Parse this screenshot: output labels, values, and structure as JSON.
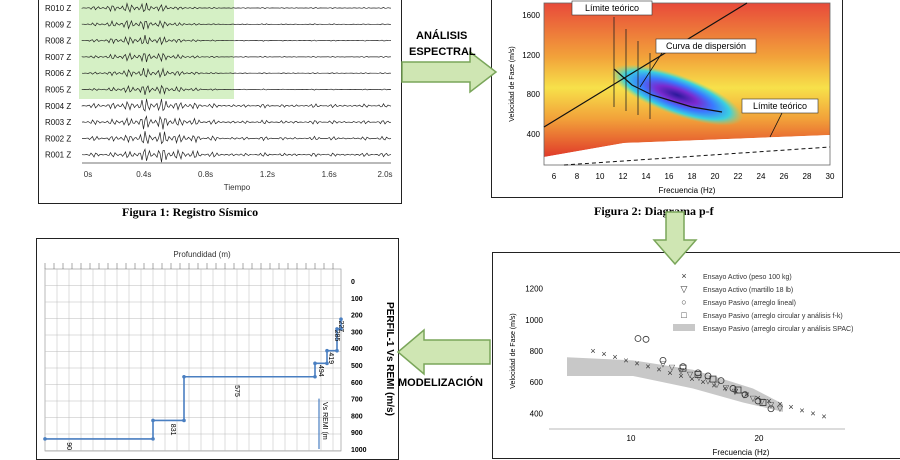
{
  "flow": {
    "arrow1_line1": "ANÁLISIS",
    "arrow1_line2": "ESPECTRAL",
    "arrow3_label": "MODELIZACIÓN"
  },
  "fig1": {
    "caption": "Figura 1: Registro Sísmico",
    "traces": [
      "R010 Z",
      "R009 Z",
      "R008 Z",
      "R007 Z",
      "R006 Z",
      "R005 Z",
      "R004 Z",
      "R003 Z",
      "R002 Z",
      "R001 Z"
    ],
    "xticks": [
      "0s",
      "0.4s",
      "0.8s",
      "1.2s",
      "1.6s",
      "2.0s"
    ],
    "xlabel": "Tiempo"
  },
  "fig2": {
    "caption": "Figura 2: Diagrama p-f",
    "ylabel": "Velocidad de Fase (m/s)",
    "xlabel": "Frecuencia (Hz)",
    "yticks": [
      "1600",
      "1200",
      "800",
      "400"
    ],
    "xticks": [
      "6",
      "8",
      "10",
      "12",
      "14",
      "16",
      "18",
      "20",
      "22",
      "24",
      "26",
      "28",
      "30"
    ],
    "label_limit_top": "Límite teórico",
    "label_curve": "Curva de dispersión",
    "label_limit_bottom": "Límite teórico"
  },
  "fig3": {
    "ylabel": "Velocidad de Fase (m/s)",
    "xlabel": "Frecuencia (Hz)",
    "yticks": [
      "1200",
      "1000",
      "800",
      "600",
      "400"
    ],
    "xticks": [
      "10",
      "20"
    ],
    "legend": [
      {
        "symbol": "×",
        "label": "Ensayo Activo (peso 100 kg)"
      },
      {
        "symbol": "▽",
        "label": "Ensayo Activo (martillo 18 lb)"
      },
      {
        "symbol": "○",
        "label": "Ensayo Pasivo (arreglo lineal)"
      },
      {
        "symbol": "□",
        "label": "Ensayo Pasivo (arreglo circular y análisis f-k)"
      },
      {
        "symbol": "band",
        "label": "Ensayo Pasivo (arreglo circular y análisis SPAC)"
      }
    ]
  },
  "fig4": {
    "title": "Profundidad (m)",
    "side_title": "PERFIL-1  Vs REMI (m/s)",
    "yticks": [
      "0",
      "100",
      "200",
      "300",
      "400",
      "500",
      "600",
      "700",
      "800",
      "900",
      "1000"
    ],
    "legend_label": "Vs REMI (m",
    "layer_labels": [
      "227",
      "285",
      "419",
      "494",
      "575",
      "831",
      "90"
    ]
  },
  "colors": {
    "arrow_fill": "#cfe6b3",
    "arrow_stroke": "#7aa65a",
    "profile_line": "#4a7fc1",
    "highlight": "#d5f0c5"
  }
}
